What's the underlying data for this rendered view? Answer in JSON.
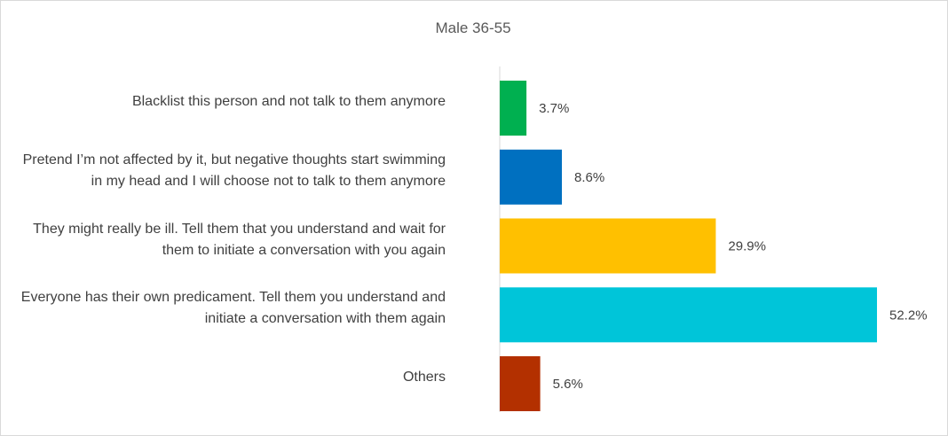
{
  "chart_data": {
    "type": "bar",
    "orientation": "horizontal",
    "title": "Male 36-55",
    "categories": [
      [
        "Blacklist this person and not talk to them anymore"
      ],
      [
        "Pretend I’m not affected by it, but negative thoughts start swimming",
        "in my head and I will choose not to talk to them anymore"
      ],
      [
        "They might really be ill. Tell them that you understand and wait for",
        "them to initiate a conversation with you again"
      ],
      [
        "Everyone has their own predicament. Tell them you understand and",
        "initiate a conversation with them again"
      ],
      [
        "Others"
      ]
    ],
    "values": [
      3.7,
      8.6,
      29.9,
      52.2,
      5.6
    ],
    "value_labels": [
      "3.7%",
      "8.6%",
      "29.9%",
      "52.2%",
      "5.6%"
    ],
    "unit": "%",
    "colors": [
      "#00b050",
      "#0070c0",
      "#ffc000",
      "#00c5d9",
      "#b33000"
    ],
    "xlim": [
      0,
      52.2
    ],
    "grid": false,
    "legend": "none"
  }
}
